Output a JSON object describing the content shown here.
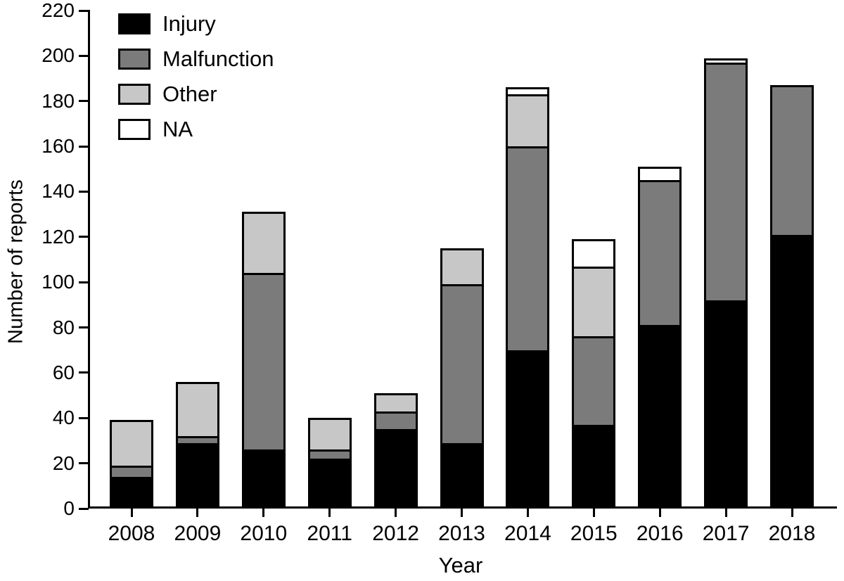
{
  "chart_data": {
    "type": "bar",
    "stacked": true,
    "title": "",
    "xlabel": "Year",
    "ylabel": "Number of reports",
    "ylim": [
      0,
      220
    ],
    "ytick_step": 20,
    "grid": false,
    "legend_position": "top-left",
    "categories": [
      "2008",
      "2009",
      "2010",
      "2011",
      "2012",
      "2013",
      "2014",
      "2015",
      "2016",
      "2017",
      "2018"
    ],
    "series": [
      {
        "name": "Injury",
        "color": "#000000",
        "values": [
          14,
          29,
          26,
          22,
          35,
          29,
          70,
          37,
          81,
          92,
          121
        ]
      },
      {
        "name": "Malfunction",
        "color": "#7b7b7b",
        "values": [
          5,
          3,
          78,
          4,
          8,
          70,
          90,
          39,
          64,
          105,
          66
        ]
      },
      {
        "name": "Other",
        "color": "#c7c7c7",
        "values": [
          20,
          24,
          27,
          14,
          8,
          16,
          23,
          31,
          0,
          0,
          0
        ]
      },
      {
        "name": "NA",
        "color": "#ffffff",
        "values": [
          0,
          0,
          0,
          0,
          0,
          0,
          3,
          12,
          6,
          2,
          0
        ]
      }
    ],
    "axis_color": "#000000"
  }
}
